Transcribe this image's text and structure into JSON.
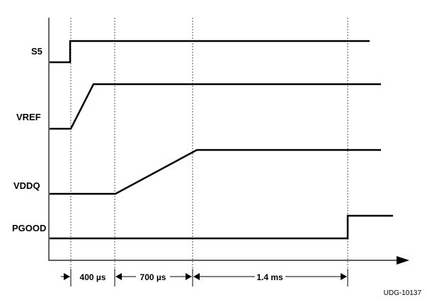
{
  "signals": {
    "s5": "S5",
    "vref": "VREF",
    "vddq": "VDDQ",
    "pgood": "PGOOD"
  },
  "intervals": {
    "first": "400 µs",
    "second": "700 µs",
    "third": "1.4 ms"
  },
  "figure_id": "UDG-10137"
}
